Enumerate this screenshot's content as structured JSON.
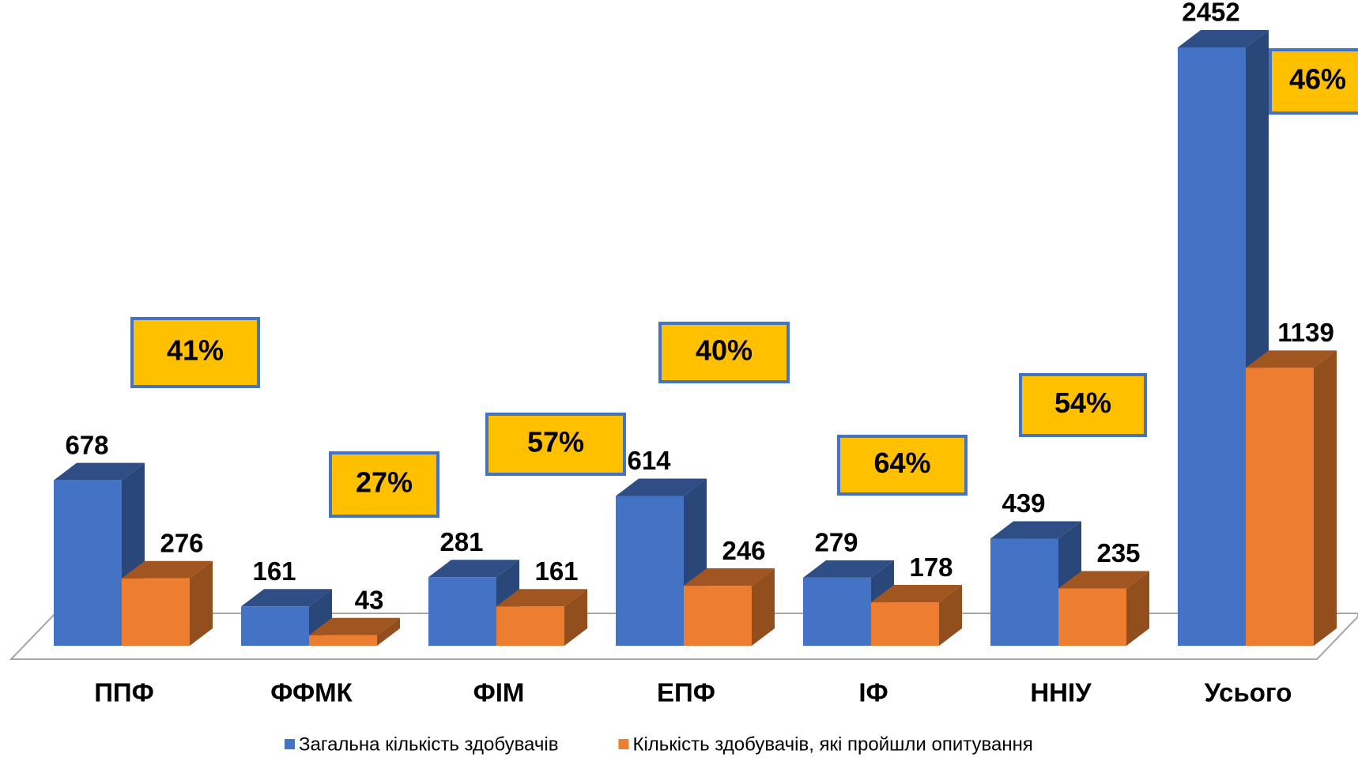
{
  "chart_data": {
    "type": "bar3d",
    "categories": [
      "ППФ",
      "ФФМК",
      "ФІМ",
      "ЕПФ",
      "ІФ",
      "ННІУ",
      "Усього"
    ],
    "series": [
      {
        "name": "Загальна кількість здобувачів",
        "color": "#4472c4",
        "values": [
          678,
          161,
          281,
          614,
          279,
          439,
          2452
        ]
      },
      {
        "name": "Кількість здобувачів, які пройшли опитування",
        "color": "#ed7d31",
        "values": [
          276,
          43,
          161,
          246,
          178,
          235,
          1139
        ]
      }
    ],
    "annotations": [
      "41%",
      "27%",
      "57%",
      "40%",
      "64%",
      "54%",
      "46%"
    ],
    "legend": "bottom"
  }
}
